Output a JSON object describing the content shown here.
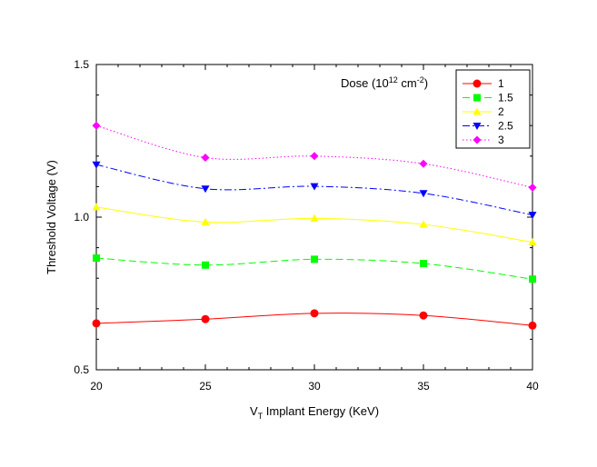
{
  "chart_data": {
    "type": "line",
    "xlabel_main": "V",
    "xlabel_sub": "T",
    "xlabel_rest": " Implant Energy (KeV)",
    "ylabel": "Threshold Voltage (V)",
    "xlim": [
      20,
      40
    ],
    "ylim": [
      0.5,
      1.5
    ],
    "xticks": [
      "20",
      "25",
      "30",
      "35",
      "40"
    ],
    "yticks": [
      "0.5",
      "1.0",
      "1.5"
    ],
    "grid": false,
    "legend_placement": "top-right",
    "legend_title_main": "Dose (10",
    "legend_title_sup1": "12",
    "legend_title_mid": " cm",
    "legend_title_sup2": "-2",
    "legend_title_end": ")",
    "x": [
      20,
      25,
      30,
      35,
      40
    ],
    "series": [
      {
        "name": "1",
        "color": "#ff0000",
        "marker": "circle",
        "dash": "solid",
        "values": [
          0.652,
          0.666,
          0.685,
          0.678,
          0.645
        ]
      },
      {
        "name": "1.5",
        "color": "#00ff00",
        "marker": "square",
        "dash": "dashed",
        "values": [
          0.866,
          0.843,
          0.862,
          0.848,
          0.797
        ]
      },
      {
        "name": "2",
        "color": "#ffff00",
        "marker": "triangle-up",
        "dash": "solid",
        "values": [
          1.033,
          0.984,
          0.996,
          0.976,
          0.918
        ]
      },
      {
        "name": "2.5",
        "color": "#0000ff",
        "marker": "triangle-down",
        "dash": "dashdot",
        "values": [
          1.172,
          1.093,
          1.101,
          1.078,
          1.007
        ]
      },
      {
        "name": "3",
        "color": "#ff00ff",
        "marker": "diamond",
        "dash": "dotted",
        "values": [
          1.3,
          1.195,
          1.2,
          1.175,
          1.097
        ]
      }
    ]
  }
}
